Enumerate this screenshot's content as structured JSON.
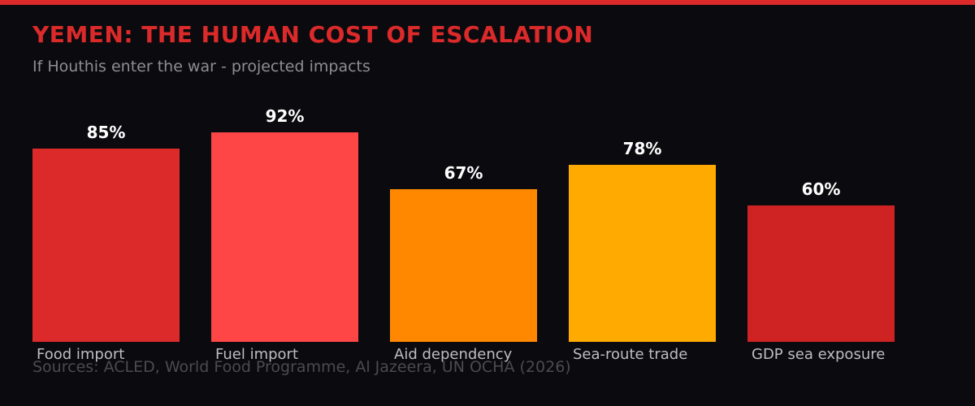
{
  "header": {
    "title": "YEMEN: THE HUMAN COST OF ESCALATION",
    "subtitle": "If Houthis enter the war - projected impacts",
    "accent_color": "#dc2a2a"
  },
  "footer": {
    "sources": "Sources: ACLED, World Food Programme, Al Jazeera, UN OCHA (2026)"
  },
  "chart_data": {
    "type": "bar",
    "title": "YEMEN: THE HUMAN COST OF ESCALATION",
    "subtitle": "If Houthis enter the war - projected impacts",
    "xlabel": "",
    "ylabel": "",
    "ylim": [
      0,
      100
    ],
    "grid": false,
    "legend": null,
    "categories": [
      "Food import",
      "Fuel import",
      "Aid dependency",
      "Sea-route trade",
      "GDP sea exposure"
    ],
    "values": [
      85,
      92,
      67,
      78,
      60
    ],
    "value_labels": [
      "85%",
      "92%",
      "67%",
      "78%",
      "60%"
    ],
    "colors": [
      "#dc2a2a",
      "#ff4646",
      "#ff8800",
      "#ffaa00",
      "#cf2222"
    ],
    "annotation": "Sources: ACLED, World Food Programme, Al Jazeera, UN OCHA (2026)"
  }
}
